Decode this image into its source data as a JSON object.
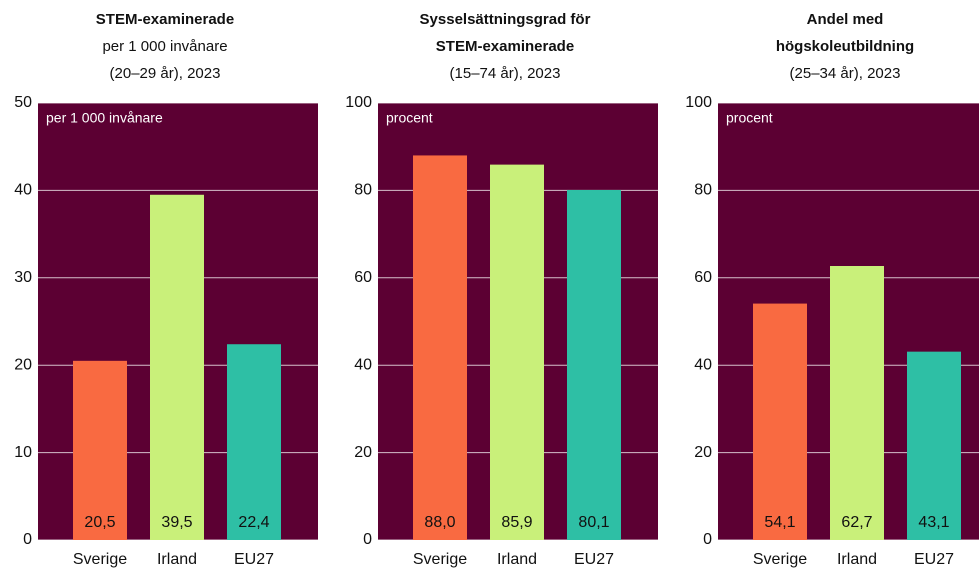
{
  "chart_data": [
    {
      "type": "bar",
      "title": [
        "STEM-examinerade"
      ],
      "subtitle": [
        "per 1 000 invånare",
        "(20–29 år), 2023"
      ],
      "unit_label": "per 1 000 invånare",
      "categories": [
        "Sverige",
        "Irland",
        "EU27"
      ],
      "values": [
        20.5,
        39.5,
        22.4
      ],
      "value_labels": [
        "20,5",
        "39,5",
        "22,4"
      ],
      "colors": [
        "#f96a41",
        "#c9f07a",
        "#2ebfa5"
      ],
      "ylim": [
        0,
        50
      ],
      "yticks": [
        0,
        10,
        20,
        30,
        40,
        50
      ],
      "grid": true
    },
    {
      "type": "bar",
      "title": [
        "Sysselsättningsgrad för",
        "STEM-examinerade"
      ],
      "subtitle": [
        "(15–74 år), 2023"
      ],
      "unit_label": "procent",
      "categories": [
        "Sverige",
        "Irland",
        "EU27"
      ],
      "values": [
        88.0,
        85.9,
        80.1
      ],
      "value_labels": [
        "88,0",
        "85,9",
        "80,1"
      ],
      "colors": [
        "#f96a41",
        "#c9f07a",
        "#2ebfa5"
      ],
      "ylim": [
        0,
        100
      ],
      "yticks": [
        0,
        20,
        40,
        60,
        80,
        100
      ],
      "grid": true
    },
    {
      "type": "bar",
      "title": [
        "Andel med",
        "högskoleutbildning"
      ],
      "subtitle": [
        "(25–34 år), 2023"
      ],
      "unit_label": "procent",
      "categories": [
        "Sverige",
        "Irland",
        "EU27"
      ],
      "values": [
        54.1,
        62.7,
        43.1
      ],
      "value_labels": [
        "54,1",
        "62,7",
        "43,1"
      ],
      "colors": [
        "#f96a41",
        "#c9f07a",
        "#2ebfa5"
      ],
      "ylim": [
        0,
        100
      ],
      "yticks": [
        0,
        20,
        40,
        60,
        80,
        100
      ],
      "grid": true
    }
  ]
}
